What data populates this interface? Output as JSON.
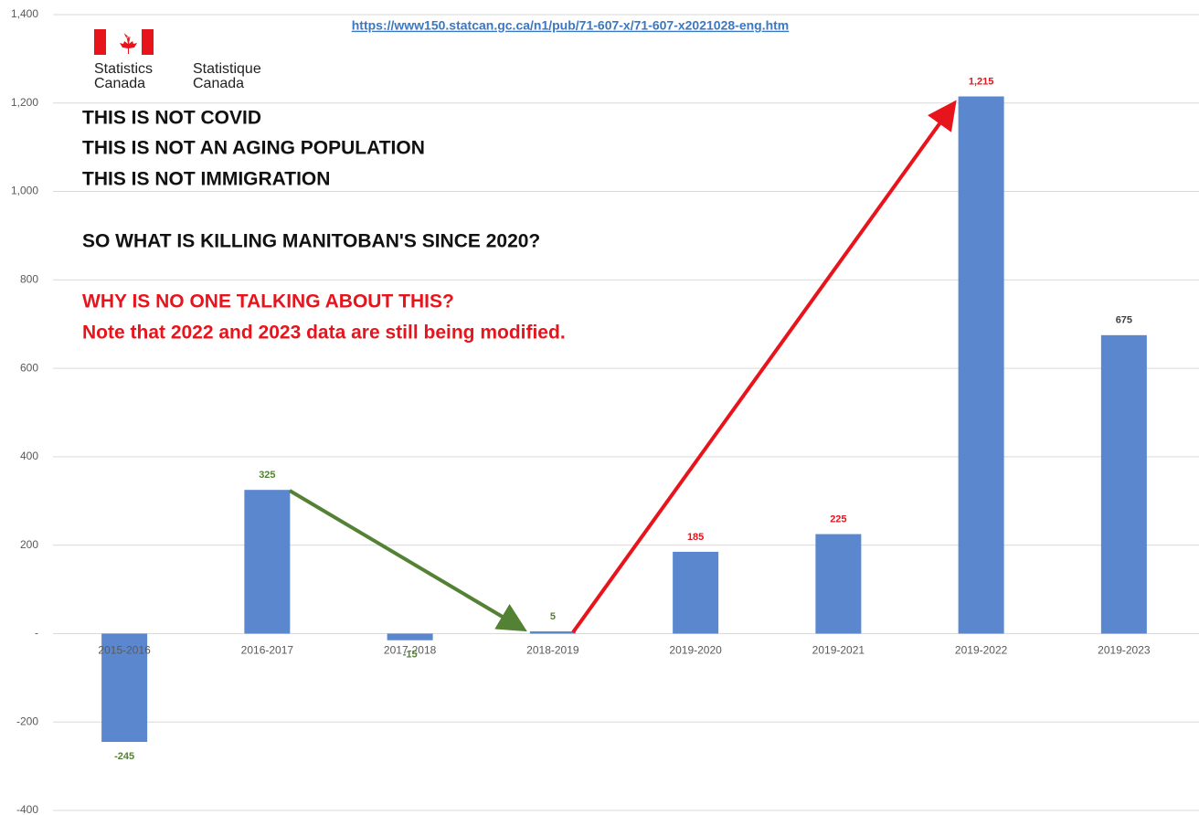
{
  "chart_data": {
    "type": "bar",
    "url": "https://www150.statcan.gc.ca/n1/pub/71-607-x/71-607-x2021028-eng.htm",
    "logo_lines": [
      "Statistics",
      "Canada",
      "Statistique",
      "Canada"
    ],
    "annotations": [
      "THIS IS NOT COVID",
      "THIS IS NOT AN AGING POPULATION",
      "THIS IS NOT IMMIGRATION",
      "SO WHAT IS KILLING MANITOBAN'S SINCE 2020?",
      "WHY IS NO ONE TALKING ABOUT THIS?",
      "Note that 2022 and 2023 data are still being modified."
    ],
    "categories": [
      "2015-2016",
      "2016-2017",
      "2017-2018",
      "2018-2019",
      "2019-2020",
      "2019-2021",
      "2019-2022",
      "2019-2023"
    ],
    "values": [
      -245,
      325,
      -15,
      5,
      185,
      225,
      1215,
      675
    ],
    "value_labels": [
      "-245",
      "325",
      "-15",
      "5",
      "185",
      "225",
      "1,215",
      "675"
    ],
    "value_label_colors": [
      "#548235",
      "#548235",
      "#548235",
      "#548235",
      "#e8141c",
      "#e8141c",
      "#e8141c",
      "#404040"
    ],
    "color": "#5b87cf",
    "ylim": [
      -400,
      1400
    ],
    "yticks": [
      -400,
      -200,
      {
        "value": 0,
        "label": "-"
      },
      200,
      400,
      600,
      800,
      {
        "value": 1000,
        "label": "1,000"
      },
      {
        "value": 1200,
        "label": "1,200"
      },
      {
        "value": 1400,
        "label": "1,400"
      }
    ],
    "grid": true
  }
}
